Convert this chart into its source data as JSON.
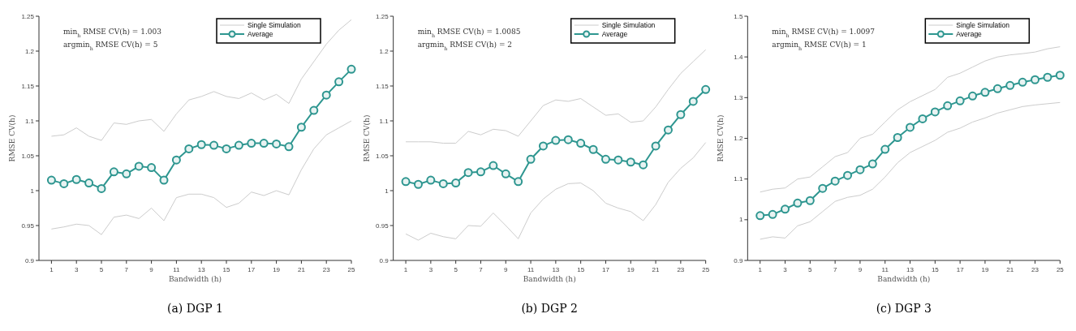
{
  "chart_data": [
    {
      "type": "line",
      "title": "(a) DGP 1",
      "xlabel": "Bandwidth (h)",
      "ylabel": "RMSE CV(h)",
      "legend": "top right",
      "xlim": [
        0,
        25
      ],
      "xticks": [
        1,
        3,
        5,
        7,
        9,
        11,
        13,
        15,
        17,
        19,
        21,
        23,
        25
      ],
      "ylim": [
        0.9,
        1.25
      ],
      "yticks": [
        0.9,
        0.95,
        1,
        1.05,
        1.1,
        1.15,
        1.2,
        1.25
      ],
      "x": [
        1,
        2,
        3,
        4,
        5,
        6,
        7,
        8,
        9,
        10,
        11,
        12,
        13,
        14,
        15,
        16,
        17,
        18,
        19,
        20,
        21,
        22,
        23,
        24,
        25
      ],
      "annotations": [
        "min$_{h}$ RMSE CV(h) = 1.003",
        "argmin$_{h}$ RMSE CV(h) = 5"
      ],
      "series": [
        {
          "name": "Single Simulation",
          "color": "#cccccc",
          "marker": "none",
          "values": [
            1.078,
            1.08,
            1.09,
            1.078,
            1.072,
            1.097,
            1.095,
            1.1,
            1.102,
            1.085,
            1.11,
            1.13,
            1.135,
            1.142,
            1.135,
            1.132,
            1.14,
            1.13,
            1.138,
            1.125,
            1.16,
            1.185,
            1.21,
            1.23,
            1.245
          ]
        },
        {
          "color": "#cccccc",
          "marker": "none",
          "values": [
            0.945,
            0.948,
            0.952,
            0.95,
            0.937,
            0.962,
            0.965,
            0.96,
            0.975,
            0.957,
            0.99,
            0.995,
            0.995,
            0.99,
            0.976,
            0.982,
            0.998,
            0.993,
            1.0,
            0.994,
            1.03,
            1.06,
            1.08,
            1.09,
            1.1
          ]
        },
        {
          "name": "Average",
          "color": "#2e9690",
          "marker": "circle",
          "values": [
            1.015,
            1.01,
            1.016,
            1.011,
            1.003,
            1.027,
            1.024,
            1.035,
            1.033,
            1.015,
            1.044,
            1.06,
            1.066,
            1.065,
            1.06,
            1.065,
            1.068,
            1.068,
            1.067,
            1.063,
            1.091,
            1.115,
            1.137,
            1.156,
            1.174
          ]
        }
      ]
    },
    {
      "type": "line",
      "title": "(b) DGP 2",
      "xlabel": "Bandwidth (h)",
      "ylabel": "RMSE CV(h)",
      "legend": "top right",
      "xlim": [
        0,
        25
      ],
      "xticks": [
        1,
        3,
        5,
        7,
        9,
        11,
        13,
        15,
        17,
        19,
        21,
        23,
        25
      ],
      "ylim": [
        0.9,
        1.25
      ],
      "yticks": [
        0.9,
        0.95,
        1,
        1.05,
        1.1,
        1.15,
        1.2,
        1.25
      ],
      "x": [
        1,
        2,
        3,
        4,
        5,
        6,
        7,
        8,
        9,
        10,
        11,
        12,
        13,
        14,
        15,
        16,
        17,
        18,
        19,
        20,
        21,
        22,
        23,
        24,
        25
      ],
      "annotations": [
        "min$_{h}$ RMSE CV(h) = 1.0085",
        "argmin$_{h}$ RMSE CV(h) = 2"
      ],
      "series": [
        {
          "name": "Single Simulation",
          "color": "#cccccc",
          "marker": "none",
          "values": [
            1.07,
            1.07,
            1.07,
            1.068,
            1.068,
            1.085,
            1.08,
            1.088,
            1.086,
            1.078,
            1.1,
            1.122,
            1.13,
            1.128,
            1.132,
            1.12,
            1.108,
            1.11,
            1.098,
            1.1,
            1.12,
            1.145,
            1.168,
            1.185,
            1.202
          ]
        },
        {
          "color": "#cccccc",
          "marker": "none",
          "values": [
            0.938,
            0.929,
            0.939,
            0.934,
            0.931,
            0.95,
            0.949,
            0.968,
            0.95,
            0.931,
            0.968,
            0.988,
            1.002,
            1.01,
            1.011,
            1.0,
            0.982,
            0.975,
            0.97,
            0.957,
            0.98,
            1.012,
            1.032,
            1.047,
            1.069
          ]
        },
        {
          "name": "Average",
          "color": "#2e9690",
          "marker": "circle",
          "values": [
            1.013,
            1.009,
            1.015,
            1.01,
            1.011,
            1.026,
            1.027,
            1.036,
            1.024,
            1.013,
            1.045,
            1.064,
            1.072,
            1.073,
            1.068,
            1.059,
            1.045,
            1.044,
            1.041,
            1.037,
            1.064,
            1.087,
            1.109,
            1.128,
            1.145
          ]
        }
      ]
    },
    {
      "type": "line",
      "title": "(c) DGP 3",
      "xlabel": "Bandwidth (h)",
      "ylabel": "RMSE CV(h)",
      "legend": "top right",
      "xlim": [
        0,
        25
      ],
      "xticks": [
        1,
        3,
        5,
        7,
        9,
        11,
        13,
        15,
        17,
        19,
        21,
        23,
        25
      ],
      "ylim": [
        0.9,
        1.5
      ],
      "yticks": [
        0.9,
        1,
        1.1,
        1.2,
        1.3,
        1.4,
        1.5
      ],
      "x": [
        1,
        2,
        3,
        4,
        5,
        6,
        7,
        8,
        9,
        10,
        11,
        12,
        13,
        14,
        15,
        16,
        17,
        18,
        19,
        20,
        21,
        22,
        23,
        24,
        25
      ],
      "annotations": [
        "min$_{h}$ RMSE CV(h) = 1.0097",
        "argmin$_{h}$ RMSE CV(h) = 1"
      ],
      "series": [
        {
          "name": "Single Simulation",
          "color": "#cccccc",
          "marker": "none",
          "values": [
            1.068,
            1.075,
            1.078,
            1.1,
            1.105,
            1.13,
            1.155,
            1.165,
            1.2,
            1.21,
            1.24,
            1.27,
            1.29,
            1.305,
            1.32,
            1.35,
            1.36,
            1.375,
            1.39,
            1.4,
            1.405,
            1.408,
            1.412,
            1.42,
            1.425
          ]
        },
        {
          "color": "#cccccc",
          "marker": "none",
          "values": [
            0.952,
            0.958,
            0.955,
            0.985,
            0.995,
            1.02,
            1.045,
            1.055,
            1.06,
            1.075,
            1.105,
            1.14,
            1.165,
            1.18,
            1.195,
            1.215,
            1.225,
            1.24,
            1.25,
            1.262,
            1.27,
            1.278,
            1.282,
            1.285,
            1.288
          ]
        },
        {
          "name": "Average",
          "color": "#2e9690",
          "marker": "circle",
          "values": [
            1.01,
            1.013,
            1.026,
            1.041,
            1.047,
            1.077,
            1.095,
            1.109,
            1.123,
            1.137,
            1.173,
            1.202,
            1.227,
            1.248,
            1.265,
            1.28,
            1.292,
            1.304,
            1.313,
            1.322,
            1.33,
            1.338,
            1.344,
            1.35,
            1.355
          ]
        }
      ]
    }
  ]
}
